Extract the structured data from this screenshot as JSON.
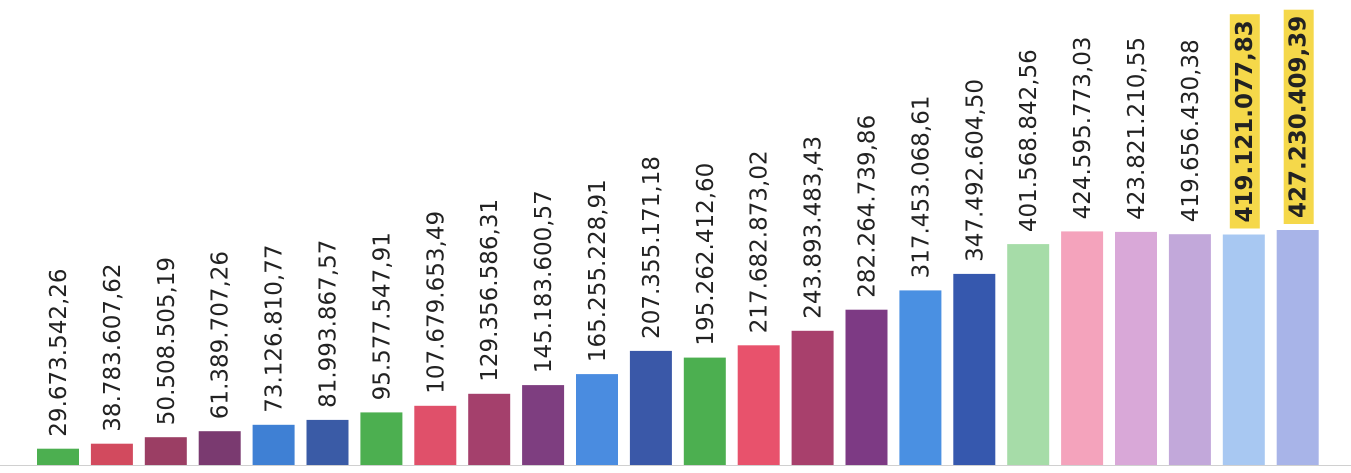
{
  "chart_data": {
    "type": "bar",
    "title": "",
    "xlabel": "",
    "ylabel": "",
    "ylim": [
      0,
      440000000
    ],
    "grid": false,
    "legend": "none",
    "values": [
      29673542.26,
      38783607.62,
      50508505.19,
      61389707.26,
      73126810.77,
      81993867.57,
      95577547.91,
      107679653.49,
      129356586.31,
      145183600.57,
      165255228.91,
      207355171.18,
      195262412.6,
      217682873.02,
      243893483.43,
      282264739.86,
      317453068.61,
      347492604.5,
      401568842.56,
      424595773.03,
      423821210.55,
      419656430.38,
      419121077.83,
      427230409.39
    ],
    "labels": [
      "29.673.542,26",
      "38.783.607,62",
      "50.508.505,19",
      "61.389.707,26",
      "73.126.810,77",
      "81.993.867,57",
      "95.577.547,91",
      "107.679.653,49",
      "129.356.586,31",
      "145.183.600,57",
      "165.255.228,91",
      "207.355.171,18",
      "195.262.412,60",
      "217.682.873,02",
      "243.893.483,43",
      "282.264.739,86",
      "317.453.068,61",
      "347.492.604,50",
      "401.568.842,56",
      "424.595.773,03",
      "423.821.210,55",
      "419.656.430,38",
      "419.121.077,83",
      "427.230.409,39"
    ],
    "colors": [
      "#4caf50",
      "#d24a5e",
      "#9b3e64",
      "#7a3a70",
      "#3f80d4",
      "#3a5ba6",
      "#4caf50",
      "#e0506a",
      "#a4406c",
      "#7e3e80",
      "#4a8ce0",
      "#3a58a8",
      "#4caf50",
      "#e8526c",
      "#a8406c",
      "#7d3a84",
      "#4a90e2",
      "#3658ae",
      "#a6dca8",
      "#f4a3bc",
      "#d9a8d8",
      "#c2a8da",
      "#a8c8f2",
      "#a8b4e8"
    ],
    "highlighted": [
      false,
      false,
      false,
      false,
      false,
      false,
      false,
      false,
      false,
      false,
      false,
      false,
      false,
      false,
      false,
      false,
      false,
      false,
      false,
      false,
      false,
      false,
      true,
      true
    ],
    "highlight_color": "#f5d84a"
  }
}
